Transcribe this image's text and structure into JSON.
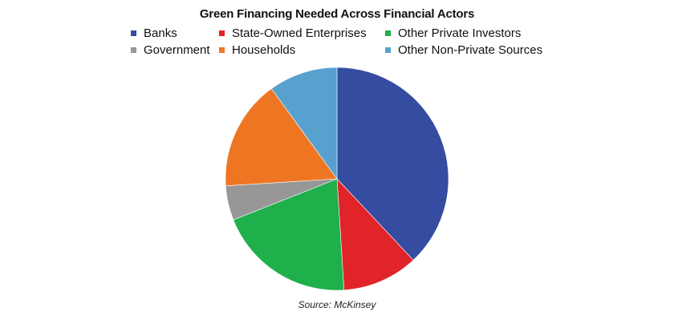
{
  "chart_data": {
    "type": "pie",
    "title": "Green Financing Needed Across Financial Actors",
    "source": "Source: McKinsey",
    "legend_position": "top",
    "slices": [
      {
        "label": "Banks",
        "value": 38,
        "color": "#354ca1"
      },
      {
        "label": "State-Owned Enterprises",
        "value": 11,
        "color": "#e1232a"
      },
      {
        "label": "Other Private Investors",
        "value": 20,
        "color": "#1fb04b"
      },
      {
        "label": "Government",
        "value": 5,
        "color": "#979797"
      },
      {
        "label": "Households",
        "value": 16,
        "color": "#ee7623"
      },
      {
        "label": "Other Non-Private Sources",
        "value": 10,
        "color": "#58a1cf"
      }
    ]
  }
}
